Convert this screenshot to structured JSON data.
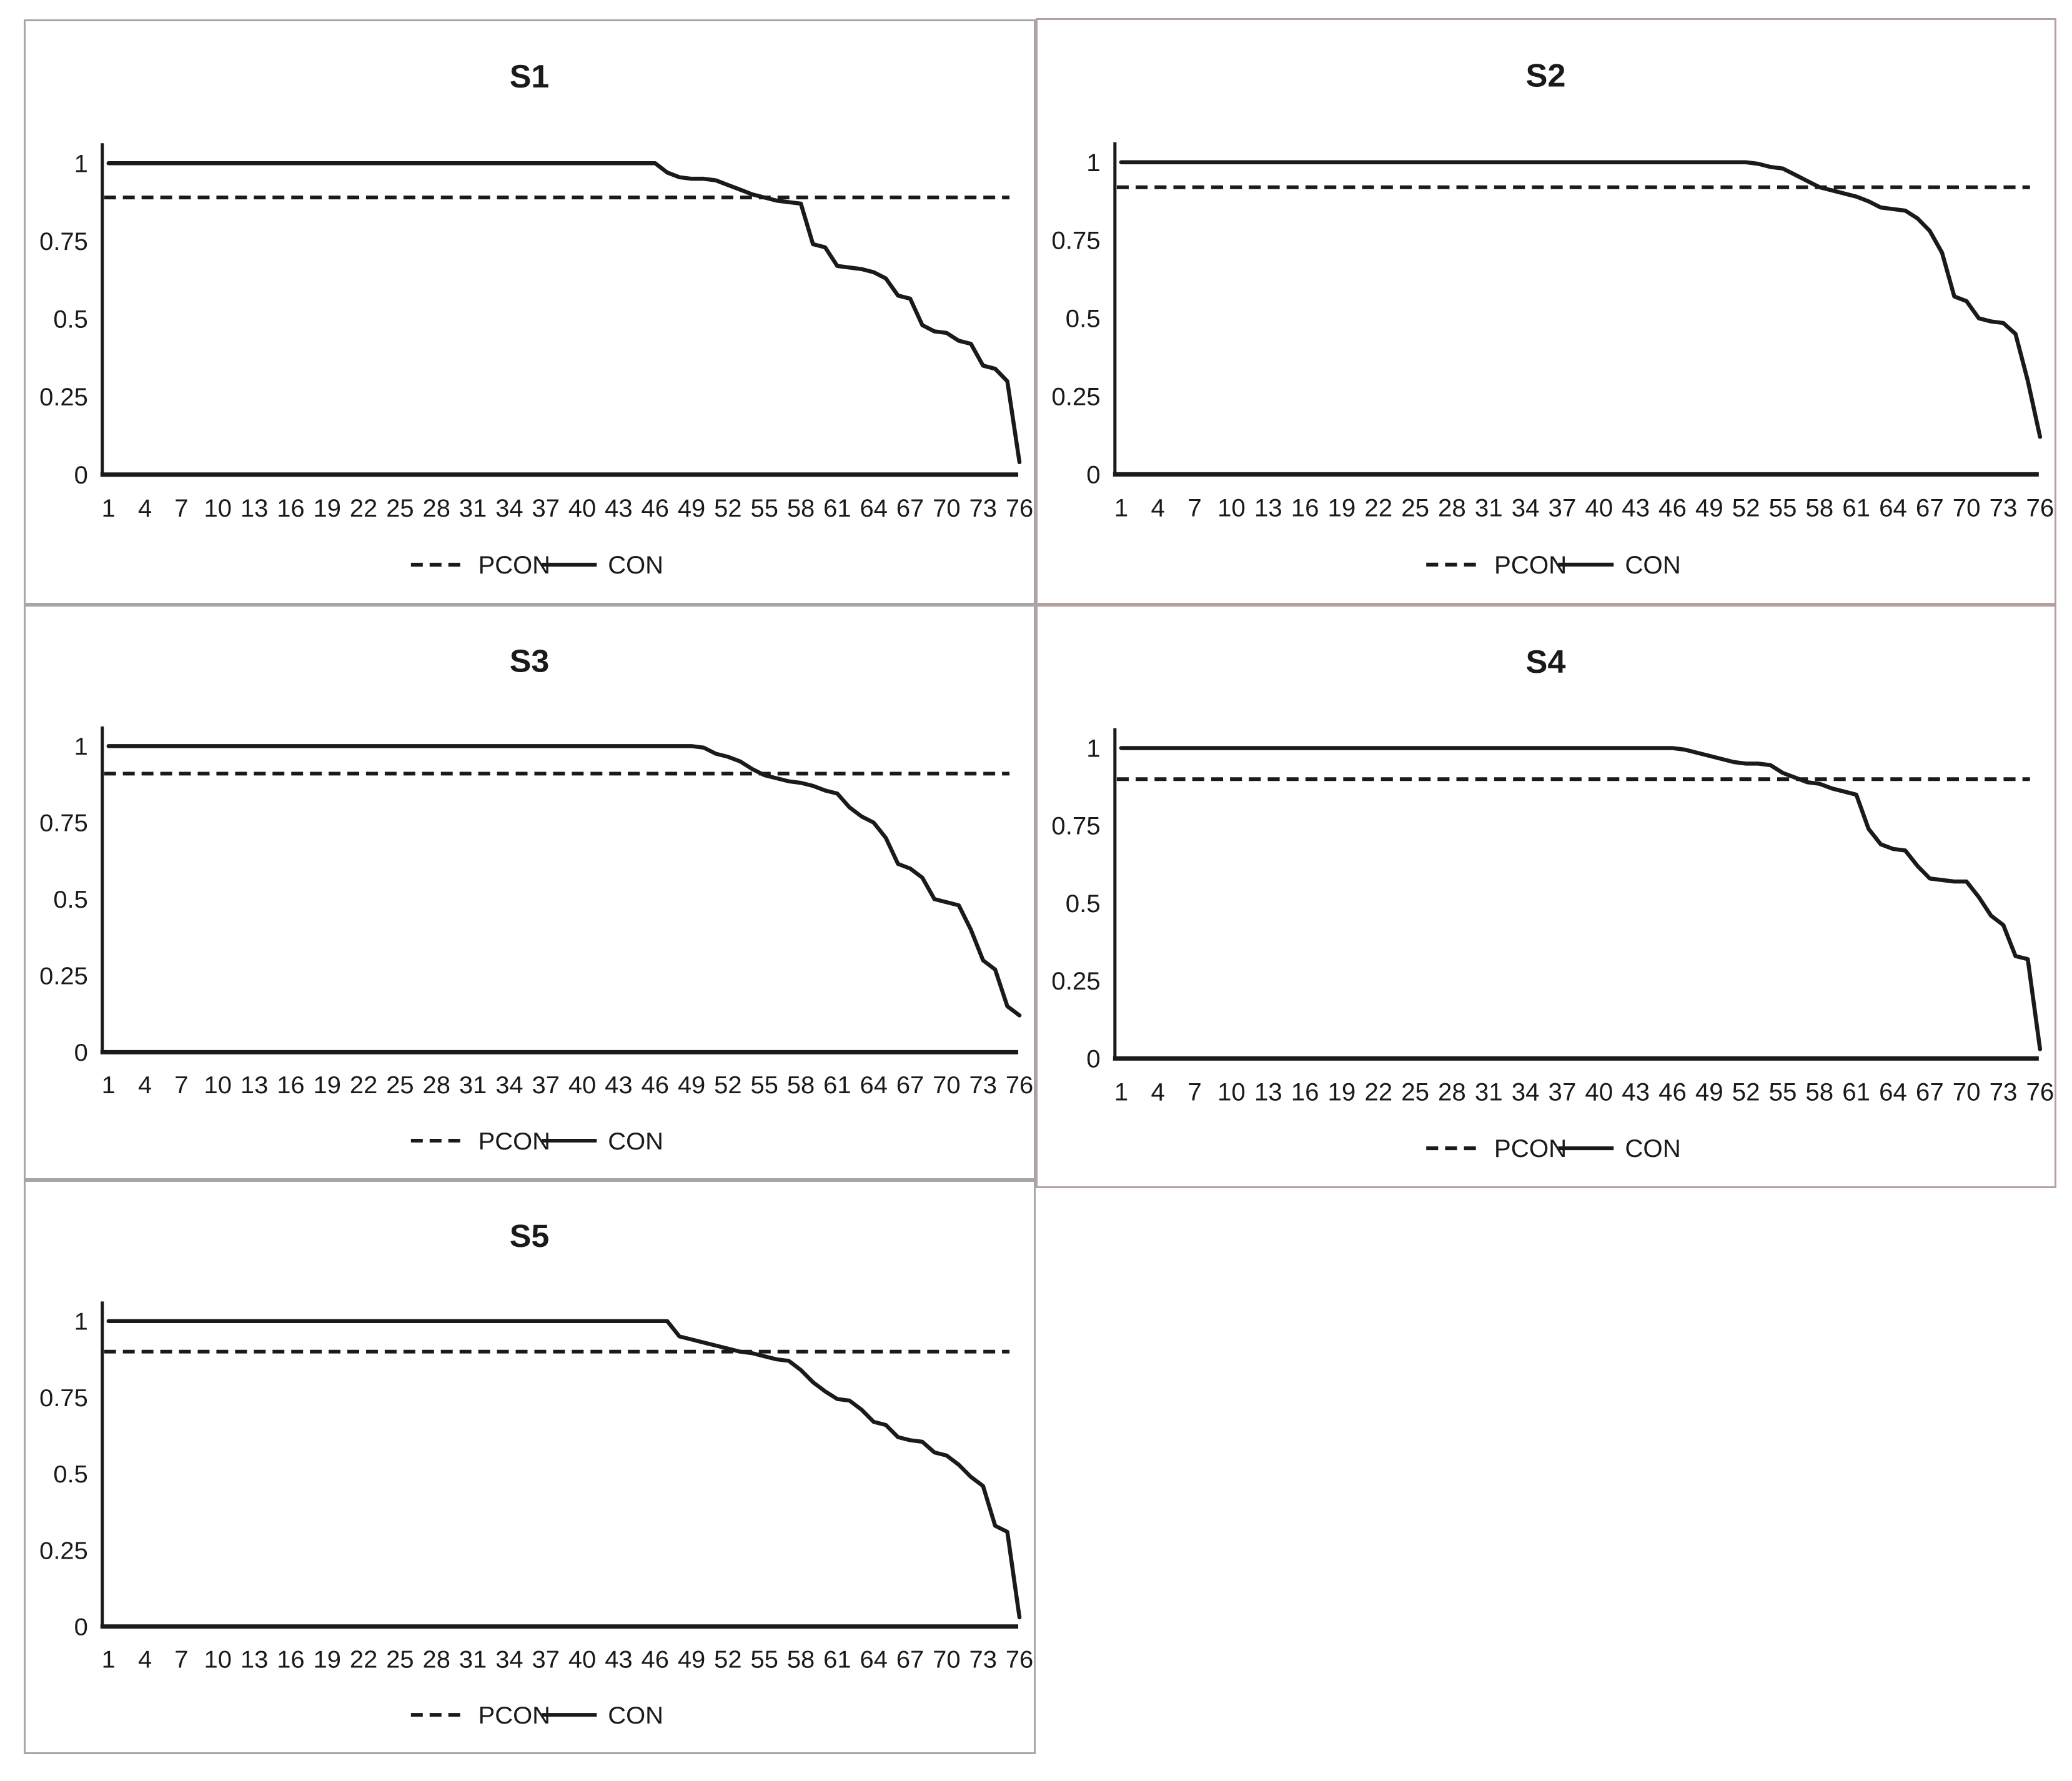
{
  "colors": {
    "line": "#1a1a1a",
    "text": "#1a1a1a",
    "panel_border": "#a6a6a6",
    "panel_border_right": "#b3a19f",
    "background": "#ffffff"
  },
  "axes_common": {
    "y_tick_labels": [
      "1",
      "0.75",
      "0.5",
      "0.25",
      "0"
    ],
    "y_tick_values": [
      1,
      0.75,
      0.5,
      0.25,
      0
    ],
    "x_tick_labels": [
      "1",
      "4",
      "7",
      "10",
      "13",
      "16",
      "19",
      "22",
      "25",
      "28",
      "31",
      "34",
      "37",
      "40",
      "43",
      "46",
      "49",
      "52",
      "55",
      "58",
      "61",
      "64",
      "67",
      "70",
      "73",
      "76"
    ],
    "x_range": [
      1,
      76
    ],
    "ylim": [
      0,
      1.05
    ],
    "grid": "off",
    "legend_position": "bottom-center"
  },
  "legend": {
    "pcon_label": "PCON",
    "con_label": "CON"
  },
  "chart_data": [
    {
      "type": "line",
      "title": "S1",
      "series": [
        {
          "name": "PCON",
          "style": "dashed",
          "constant": 0.89
        },
        {
          "name": "CON",
          "style": "solid",
          "values": [
            1,
            1,
            1,
            1,
            1,
            1,
            1,
            1,
            1,
            1,
            1,
            1,
            1,
            1,
            1,
            1,
            1,
            1,
            1,
            1,
            1,
            1,
            1,
            1,
            1,
            1,
            1,
            1,
            1,
            1,
            1,
            1,
            1,
            1,
            1,
            1,
            1,
            1,
            1,
            1,
            1,
            1,
            1,
            1,
            1,
            1,
            0.97,
            0.955,
            0.95,
            0.95,
            0.945,
            0.93,
            0.915,
            0.9,
            0.89,
            0.88,
            0.875,
            0.87,
            0.74,
            0.73,
            0.67,
            0.665,
            0.66,
            0.65,
            0.63,
            0.575,
            0.565,
            0.48,
            0.46,
            0.455,
            0.43,
            0.42,
            0.35,
            0.34,
            0.3,
            0.04
          ]
        }
      ]
    },
    {
      "type": "line",
      "title": "S2",
      "series": [
        {
          "name": "PCON",
          "style": "dashed",
          "constant": 0.92
        },
        {
          "name": "CON",
          "style": "solid",
          "values": [
            1,
            1,
            1,
            1,
            1,
            1,
            1,
            1,
            1,
            1,
            1,
            1,
            1,
            1,
            1,
            1,
            1,
            1,
            1,
            1,
            1,
            1,
            1,
            1,
            1,
            1,
            1,
            1,
            1,
            1,
            1,
            1,
            1,
            1,
            1,
            1,
            1,
            1,
            1,
            1,
            1,
            1,
            1,
            1,
            1,
            1,
            1,
            1,
            1,
            1,
            1,
            1,
            0.995,
            0.985,
            0.98,
            0.96,
            0.94,
            0.92,
            0.91,
            0.9,
            0.89,
            0.875,
            0.855,
            0.85,
            0.845,
            0.82,
            0.78,
            0.71,
            0.57,
            0.555,
            0.5,
            0.49,
            0.485,
            0.45,
            0.3,
            0.12
          ]
        }
      ]
    },
    {
      "type": "line",
      "title": "S3",
      "series": [
        {
          "name": "PCON",
          "style": "dashed",
          "constant": 0.91
        },
        {
          "name": "CON",
          "style": "solid",
          "values": [
            1,
            1,
            1,
            1,
            1,
            1,
            1,
            1,
            1,
            1,
            1,
            1,
            1,
            1,
            1,
            1,
            1,
            1,
            1,
            1,
            1,
            1,
            1,
            1,
            1,
            1,
            1,
            1,
            1,
            1,
            1,
            1,
            1,
            1,
            1,
            1,
            1,
            1,
            1,
            1,
            1,
            1,
            1,
            1,
            1,
            1,
            1,
            1,
            1,
            0.995,
            0.975,
            0.965,
            0.95,
            0.925,
            0.905,
            0.895,
            0.885,
            0.88,
            0.87,
            0.855,
            0.845,
            0.8,
            0.77,
            0.75,
            0.7,
            0.615,
            0.6,
            0.57,
            0.5,
            0.49,
            0.48,
            0.4,
            0.3,
            0.27,
            0.15,
            0.12
          ]
        }
      ]
    },
    {
      "type": "line",
      "title": "S4",
      "series": [
        {
          "name": "PCON",
          "style": "dashed",
          "constant": 0.9
        },
        {
          "name": "CON",
          "style": "solid",
          "values": [
            1,
            1,
            1,
            1,
            1,
            1,
            1,
            1,
            1,
            1,
            1,
            1,
            1,
            1,
            1,
            1,
            1,
            1,
            1,
            1,
            1,
            1,
            1,
            1,
            1,
            1,
            1,
            1,
            1,
            1,
            1,
            1,
            1,
            1,
            1,
            1,
            1,
            1,
            1,
            1,
            1,
            1,
            1,
            1,
            1,
            1,
            0.995,
            0.985,
            0.975,
            0.965,
            0.955,
            0.95,
            0.95,
            0.945,
            0.92,
            0.905,
            0.89,
            0.885,
            0.87,
            0.86,
            0.85,
            0.74,
            0.69,
            0.675,
            0.67,
            0.62,
            0.58,
            0.575,
            0.57,
            0.57,
            0.52,
            0.46,
            0.43,
            0.33,
            0.32,
            0.03
          ]
        }
      ]
    },
    {
      "type": "line",
      "title": "S5",
      "series": [
        {
          "name": "PCON",
          "style": "dashed",
          "constant": 0.9
        },
        {
          "name": "CON",
          "style": "solid",
          "values": [
            1,
            1,
            1,
            1,
            1,
            1,
            1,
            1,
            1,
            1,
            1,
            1,
            1,
            1,
            1,
            1,
            1,
            1,
            1,
            1,
            1,
            1,
            1,
            1,
            1,
            1,
            1,
            1,
            1,
            1,
            1,
            1,
            1,
            1,
            1,
            1,
            1,
            1,
            1,
            1,
            1,
            1,
            1,
            1,
            1,
            1,
            1,
            0.95,
            0.94,
            0.93,
            0.92,
            0.91,
            0.9,
            0.895,
            0.885,
            0.875,
            0.87,
            0.84,
            0.8,
            0.77,
            0.745,
            0.74,
            0.71,
            0.67,
            0.66,
            0.62,
            0.61,
            0.605,
            0.57,
            0.56,
            0.53,
            0.49,
            0.46,
            0.33,
            0.31,
            0.03
          ]
        }
      ]
    }
  ]
}
